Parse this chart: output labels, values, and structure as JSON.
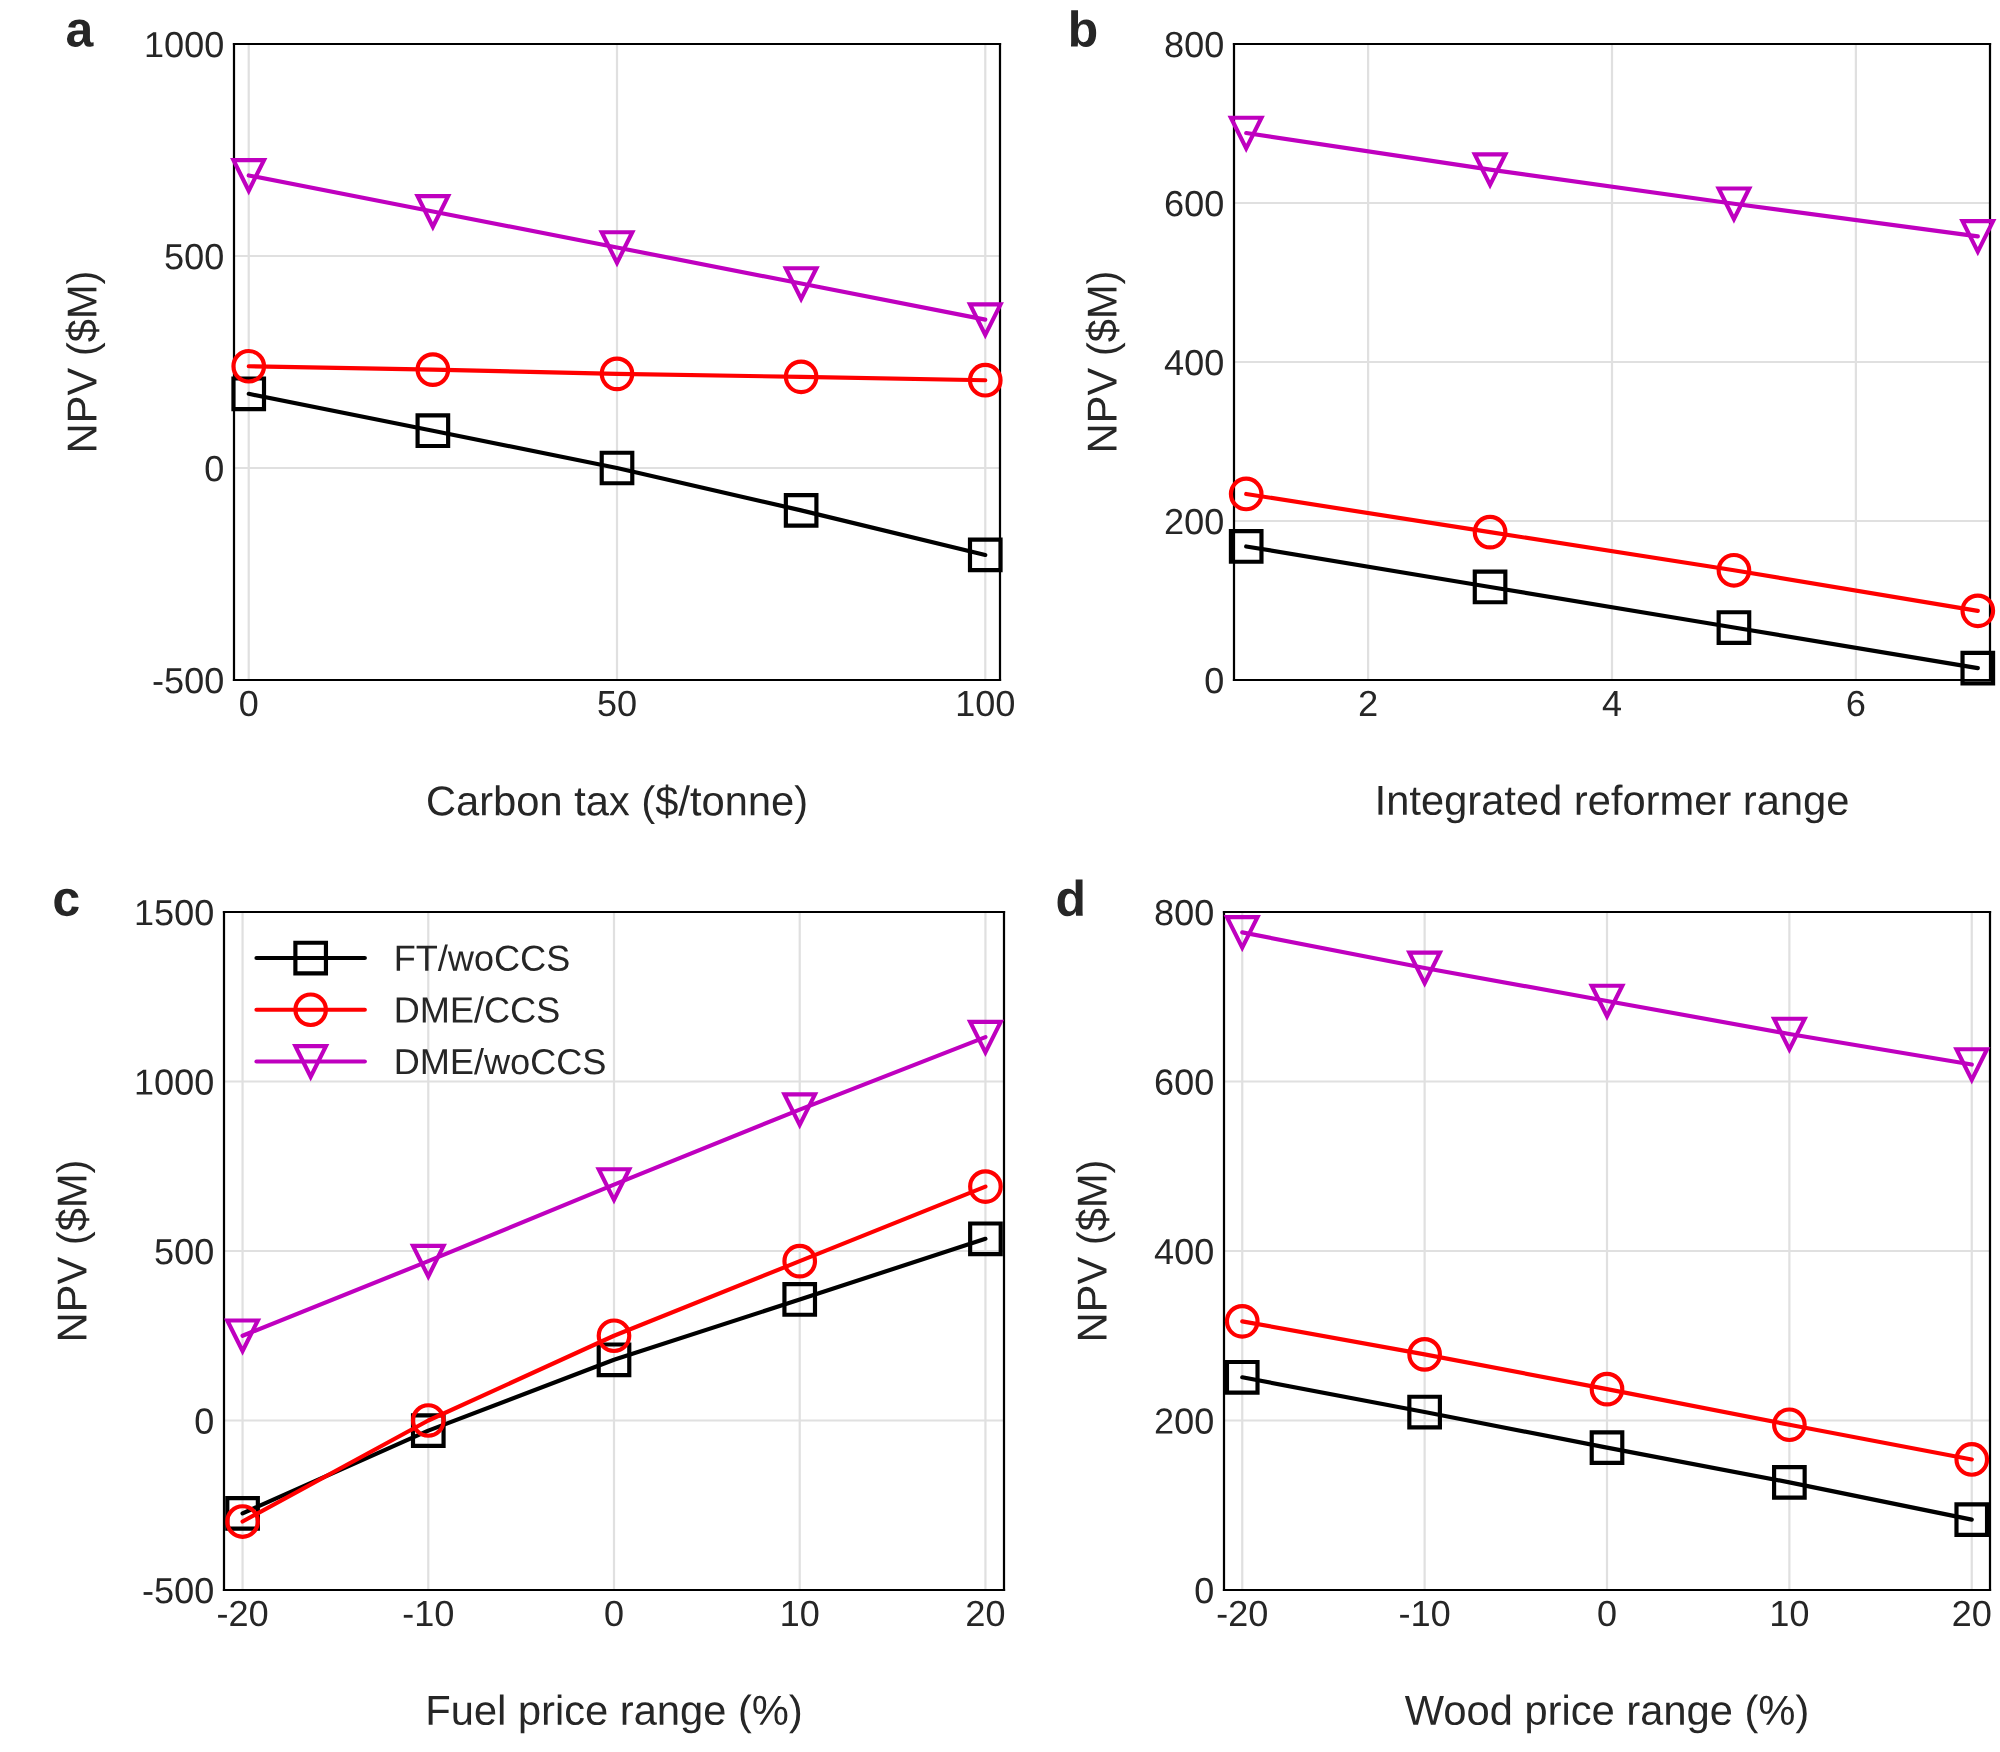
{
  "chart_data": [
    {
      "type": "line",
      "title": "a",
      "xlabel": "Carbon tax ($/tonne)",
      "ylabel": "NPV ($M)",
      "x": [
        0,
        25,
        50,
        75,
        100
      ],
      "xlim": [
        -2,
        102
      ],
      "xticks": [
        0,
        50,
        100
      ],
      "ylim": [
        -500,
        1000
      ],
      "yticks": [
        -500,
        0,
        500,
        1000
      ],
      "grid": true,
      "series": [
        {
          "color": "#000000",
          "marker": "square",
          "values": [
            175,
            88,
            0,
            -100,
            -205
          ]
        },
        {
          "color": "#ff0000",
          "marker": "circle",
          "values": [
            240,
            232,
            222,
            215,
            207
          ]
        },
        {
          "color": "#bf00bf",
          "marker": "triangle",
          "values": [
            690,
            605,
            520,
            435,
            350
          ]
        }
      ]
    },
    {
      "type": "line",
      "title": "b",
      "xlabel": "Integrated reformer range",
      "ylabel": "NPV ($M)",
      "x": [
        1,
        3,
        5,
        7
      ],
      "xlim": [
        0.9,
        7.1
      ],
      "xticks": [
        2,
        4,
        6
      ],
      "ylim": [
        0,
        800
      ],
      "yticks": [
        0,
        200,
        400,
        600,
        800
      ],
      "grid": true,
      "series": [
        {
          "color": "#000000",
          "marker": "square",
          "values": [
            168,
            117,
            66,
            15
          ]
        },
        {
          "color": "#ff0000",
          "marker": "circle",
          "values": [
            234,
            186,
            138,
            87
          ]
        },
        {
          "color": "#bf00bf",
          "marker": "triangle",
          "values": [
            688,
            642,
            599,
            558
          ]
        }
      ]
    },
    {
      "type": "line",
      "title": "c",
      "xlabel": "Fuel price range (%)",
      "ylabel": "NPV ($M)",
      "x": [
        -20,
        -10,
        0,
        10,
        20
      ],
      "xlim": [
        -21,
        21
      ],
      "xticks": [
        -20,
        -10,
        0,
        10,
        20
      ],
      "ylim": [
        -500,
        1500
      ],
      "yticks": [
        -500,
        0,
        500,
        1000,
        1500
      ],
      "grid": true,
      "legend": "top left",
      "series": [
        {
          "name": "FT/woCCS",
          "color": "#000000",
          "marker": "square",
          "values": [
            -274,
            -30,
            179,
            357,
            536
          ]
        },
        {
          "name": "DME/CCS",
          "color": "#ff0000",
          "marker": "circle",
          "values": [
            -298,
            0,
            250,
            470,
            690
          ]
        },
        {
          "name": "DME/woCCS",
          "color": "#bf00bf",
          "marker": "triangle",
          "values": [
            250,
            470,
            696,
            917,
            1131
          ]
        }
      ]
    },
    {
      "type": "line",
      "title": "d",
      "xlabel": "Wood price range (%)",
      "ylabel": "NPV ($M)",
      "x": [
        -20,
        -10,
        0,
        10,
        20
      ],
      "xlim": [
        -21,
        21
      ],
      "xticks": [
        -20,
        -10,
        0,
        10,
        20
      ],
      "ylim": [
        0,
        800
      ],
      "yticks": [
        0,
        200,
        400,
        600,
        800
      ],
      "grid": true,
      "series": [
        {
          "color": "#000000",
          "marker": "square",
          "values": [
            251,
            210,
            168,
            127,
            83
          ]
        },
        {
          "color": "#ff0000",
          "marker": "circle",
          "values": [
            317,
            278,
            237,
            195,
            154
          ]
        },
        {
          "color": "#bf00bf",
          "marker": "triangle",
          "values": [
            776,
            734,
            695,
            656,
            620
          ]
        }
      ]
    }
  ]
}
